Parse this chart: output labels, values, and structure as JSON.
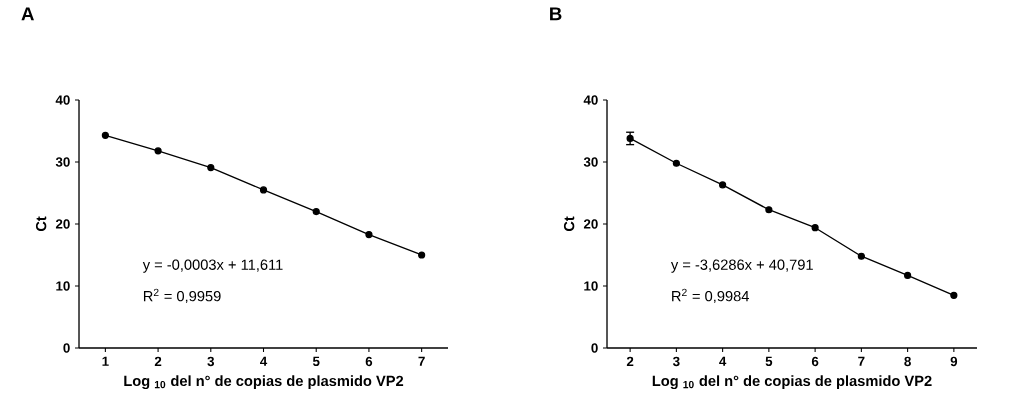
{
  "chart_data": [
    {
      "type": "line",
      "title": "A",
      "xlabel": "Log $_{10}$ del n° de copias de plasmido VP2",
      "ylabel": "Ct",
      "x": [
        1,
        2,
        3,
        4,
        5,
        6,
        7
      ],
      "series": [
        {
          "color": "#000000",
          "values": [
            34.3,
            31.8,
            29.1,
            25.5,
            22.0,
            18.3,
            15.0
          ]
        }
      ],
      "xlim": [
        0.5,
        7.5
      ],
      "xticks": [
        1,
        2,
        3,
        4,
        5,
        6,
        7
      ],
      "ylim": [
        0,
        40
      ],
      "yticks": [
        0,
        10,
        20,
        30,
        40
      ],
      "annotations": [
        "y = -0,0003x + 11,611",
        "R$^{2}$ = 0,9959"
      ],
      "marker": "circle",
      "line_style": "solid",
      "grid": false
    },
    {
      "type": "line",
      "title": "B",
      "xlabel": "Log $_{10}$ del n° de copias de plasmido VP2",
      "ylabel": "Ct",
      "x": [
        2,
        3,
        4,
        5,
        6,
        7,
        8,
        9
      ],
      "series": [
        {
          "color": "#000000",
          "values": [
            33.8,
            29.8,
            26.3,
            22.3,
            19.4,
            14.8,
            11.7,
            8.5
          ],
          "errors": [
            1,
            null,
            null,
            null,
            null,
            null,
            null,
            null
          ]
        }
      ],
      "xlim": [
        1.5,
        9.5
      ],
      "xticks": [
        2,
        3,
        4,
        5,
        6,
        7,
        8,
        9
      ],
      "ylim": [
        0,
        40
      ],
      "yticks": [
        0,
        10,
        20,
        30,
        40
      ],
      "annotations": [
        "y = -3,6286x + 40,791",
        "R$^{2}$ = 0,9984"
      ],
      "marker": "circle",
      "line_style": "solid",
      "grid": false
    }
  ]
}
